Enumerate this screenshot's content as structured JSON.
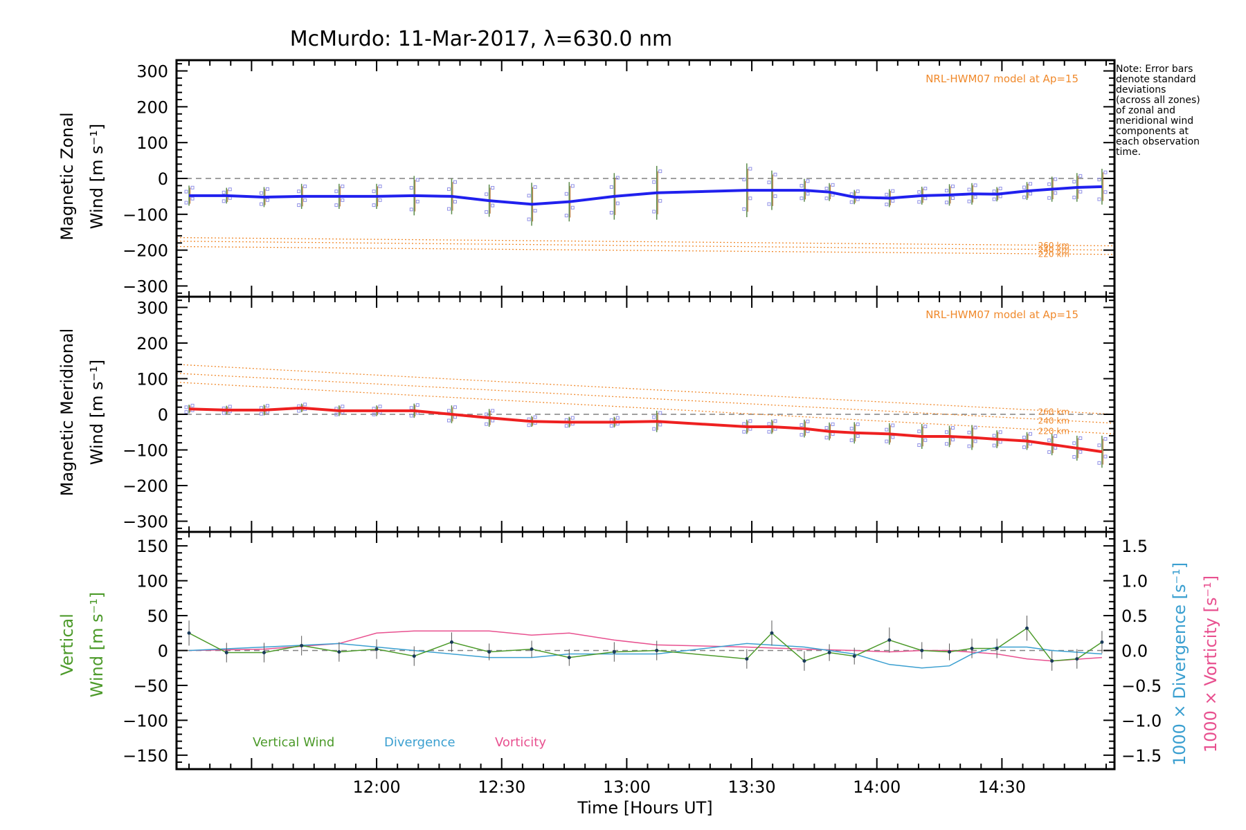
{
  "title": "McMurdo: 11-Mar-2017, λ=630.0 nm",
  "note_lines": [
    "Note: Error bars",
    "denote standard",
    "deviations",
    "(across all zones)",
    "of zonal and",
    "meridional wind",
    "components at",
    "each observation",
    "time."
  ],
  "colors": {
    "zonal": "#2020ee",
    "meridional": "#ee2020",
    "vertical": "#4c9a2a",
    "divergence": "#3a9fd0",
    "vorticity": "#e8508f",
    "model": "#f0892b",
    "zero": "#808080",
    "samples": "#8f8fe6",
    "errbar": "#555555"
  },
  "chart_data": [
    {
      "panel": "zonal",
      "type": "line",
      "ylabel_line1": "Magnetic Zonal",
      "ylabel_line2": "Wind [m s⁻¹]",
      "ylim": [
        -330,
        330
      ],
      "yticks": [
        -300,
        -200,
        -100,
        0,
        100,
        200,
        300
      ],
      "model_label": "NRL-HWM07 model at Ap=15",
      "model_series": [
        {
          "name": "260 km",
          "values": [
            -165,
            -188
          ]
        },
        {
          "name": "240 km",
          "values": [
            -175,
            -200
          ]
        },
        {
          "name": "220 km",
          "values": [
            -190,
            -212
          ]
        }
      ],
      "x": [
        11.25,
        11.4,
        11.55,
        11.7,
        11.85,
        12.0,
        12.15,
        12.3,
        12.45,
        12.62,
        12.77,
        12.95,
        13.12,
        13.48,
        13.58,
        13.71,
        13.81,
        13.91,
        14.05,
        14.18,
        14.29,
        14.38,
        14.48,
        14.6,
        14.7,
        14.8,
        14.9
      ],
      "values": [
        -48,
        -48,
        -52,
        -50,
        -50,
        -50,
        -48,
        -50,
        -62,
        -72,
        -65,
        -50,
        -40,
        -33,
        -33,
        -33,
        -38,
        -52,
        -55,
        -48,
        -46,
        -43,
        -44,
        -35,
        -30,
        -25,
        -23
      ],
      "errors": [
        28,
        22,
        28,
        35,
        35,
        35,
        55,
        50,
        45,
        60,
        55,
        65,
        75,
        75,
        55,
        32,
        25,
        20,
        25,
        25,
        30,
        30,
        20,
        25,
        35,
        40,
        50
      ],
      "points": [
        {
          "x": 11.25,
          "y": -48
        },
        {
          "x": 11.4,
          "y": -48
        },
        {
          "x": 11.55,
          "y": -52
        },
        {
          "x": 11.7,
          "y": -50
        },
        {
          "x": 11.85,
          "y": -50
        },
        {
          "x": 12.0,
          "y": -50
        },
        {
          "x": 12.15,
          "y": -48
        },
        {
          "x": 12.3,
          "y": -50
        },
        {
          "x": 12.45,
          "y": -62
        },
        {
          "x": 12.62,
          "y": -72
        },
        {
          "x": 12.77,
          "y": -65
        },
        {
          "x": 12.95,
          "y": -50
        },
        {
          "x": 13.12,
          "y": -40
        },
        {
          "x": 13.48,
          "y": -33
        },
        {
          "x": 13.58,
          "y": -33
        },
        {
          "x": 13.71,
          "y": -33
        },
        {
          "x": 13.81,
          "y": -38
        },
        {
          "x": 13.91,
          "y": -52
        },
        {
          "x": 14.05,
          "y": -55
        },
        {
          "x": 14.18,
          "y": -48
        },
        {
          "x": 14.29,
          "y": -46
        },
        {
          "x": 14.38,
          "y": -43
        },
        {
          "x": 14.48,
          "y": -44
        },
        {
          "x": 14.6,
          "y": -35
        },
        {
          "x": 14.7,
          "y": -30
        },
        {
          "x": 14.8,
          "y": -25
        },
        {
          "x": 14.9,
          "y": -23
        }
      ]
    },
    {
      "panel": "meridional",
      "type": "line",
      "ylabel_line1": "Magnetic Meridional",
      "ylabel_line2": "Wind [m s⁻¹]",
      "ylim": [
        -330,
        330
      ],
      "yticks": [
        -300,
        -200,
        -100,
        0,
        100,
        200,
        300
      ],
      "model_label": "NRL-HWM07 model at Ap=15",
      "model_series": [
        {
          "name": "260 km",
          "values": [
            140,
            0
          ]
        },
        {
          "name": "240 km",
          "values": [
            115,
            -25
          ]
        },
        {
          "name": "220 km",
          "values": [
            90,
            -55
          ]
        }
      ],
      "x": [
        11.25,
        11.4,
        11.55,
        11.7,
        11.85,
        12.0,
        12.15,
        12.3,
        12.45,
        12.62,
        12.77,
        12.95,
        13.12,
        13.48,
        13.58,
        13.71,
        13.81,
        13.91,
        14.05,
        14.18,
        14.29,
        14.38,
        14.48,
        14.6,
        14.7,
        14.8,
        14.9
      ],
      "values": [
        15,
        12,
        12,
        18,
        10,
        10,
        10,
        0,
        -10,
        -20,
        -22,
        -22,
        -20,
        -35,
        -35,
        -40,
        -48,
        -52,
        -55,
        -62,
        -62,
        -65,
        -70,
        -75,
        -85,
        -95,
        -105
      ],
      "errors": [
        12,
        12,
        15,
        12,
        15,
        15,
        20,
        25,
        25,
        15,
        15,
        15,
        30,
        20,
        20,
        25,
        25,
        30,
        30,
        35,
        30,
        35,
        25,
        25,
        30,
        35,
        45
      ],
      "points": [
        {
          "x": 11.25,
          "y": 15
        },
        {
          "x": 11.4,
          "y": 12
        },
        {
          "x": 11.55,
          "y": 12
        },
        {
          "x": 11.7,
          "y": 18
        },
        {
          "x": 11.85,
          "y": 10
        },
        {
          "x": 12.0,
          "y": 10
        },
        {
          "x": 12.15,
          "y": 10
        },
        {
          "x": 12.3,
          "y": 0
        },
        {
          "x": 12.45,
          "y": -10
        },
        {
          "x": 12.62,
          "y": -20
        },
        {
          "x": 12.77,
          "y": -22
        },
        {
          "x": 12.95,
          "y": -22
        },
        {
          "x": 13.12,
          "y": -20
        },
        {
          "x": 13.48,
          "y": -35
        },
        {
          "x": 13.58,
          "y": -35
        },
        {
          "x": 13.71,
          "y": -40
        },
        {
          "x": 13.81,
          "y": -48
        },
        {
          "x": 13.91,
          "y": -52
        },
        {
          "x": 14.05,
          "y": -55
        },
        {
          "x": 14.18,
          "y": -62
        },
        {
          "x": 14.29,
          "y": -62
        },
        {
          "x": 14.38,
          "y": -65
        },
        {
          "x": 14.48,
          "y": -70
        },
        {
          "x": 14.6,
          "y": -75
        },
        {
          "x": 14.7,
          "y": -85
        },
        {
          "x": 14.8,
          "y": -95
        },
        {
          "x": 14.9,
          "y": -105
        }
      ]
    },
    {
      "panel": "vertical",
      "type": "line",
      "ylabel_line1": "Vertical",
      "ylabel_line2": "Wind [m s⁻¹]",
      "ylim": [
        -170,
        170
      ],
      "yticks": [
        -150,
        -100,
        -50,
        0,
        50,
        100,
        150
      ],
      "ylabel_right_divergence": "1000 × Divergence [s⁻¹]",
      "ylabel_right_vorticity": "1000 × Vorticity [s⁻¹]",
      "y2lim": [
        -1.7,
        1.7
      ],
      "y2ticks": [
        -1.5,
        -1.0,
        -0.5,
        0.0,
        0.5,
        1.0,
        1.5
      ],
      "legend": [
        "Vertical Wind",
        "Divergence",
        "Vorticity"
      ],
      "x": [
        11.25,
        11.4,
        11.55,
        11.7,
        11.85,
        12.0,
        12.15,
        12.3,
        12.45,
        12.62,
        12.77,
        12.95,
        13.12,
        13.48,
        13.58,
        13.71,
        13.81,
        13.91,
        14.05,
        14.18,
        14.29,
        14.38,
        14.48,
        14.6,
        14.7,
        14.8,
        14.9
      ],
      "values": [
        25,
        -3,
        -3,
        7,
        -2,
        2,
        -8,
        12,
        -2,
        2,
        -10,
        -2,
        0,
        -12,
        25,
        -15,
        -3,
        -8,
        15,
        0,
        -2,
        3,
        3,
        32,
        -15,
        -12,
        12
      ],
      "errors": [
        18,
        14,
        14,
        14,
        14,
        14,
        14,
        14,
        12,
        12,
        12,
        14,
        14,
        14,
        18,
        14,
        12,
        12,
        18,
        12,
        12,
        14,
        14,
        18,
        14,
        14,
        16
      ],
      "divergence": [
        0.0,
        0.05,
        0.1,
        0.0,
        -0.1,
        -0.1,
        -0.05,
        -0.05,
        -0.05,
        0.1,
        0.05,
        -0.05,
        -0.2,
        -0.25,
        -0.22,
        -0.05,
        0.05,
        0.05,
        0.0,
        -0.05
      ],
      "divergence_x": [
        11.25,
        11.55,
        11.85,
        12.15,
        12.45,
        12.62,
        12.77,
        12.95,
        13.12,
        13.48,
        13.71,
        13.91,
        14.05,
        14.18,
        14.29,
        14.38,
        14.48,
        14.6,
        14.7,
        14.9
      ],
      "vorticity": [
        0.0,
        0.02,
        0.1,
        0.25,
        0.28,
        0.28,
        0.22,
        0.25,
        0.15,
        0.08,
        0.05,
        0.02,
        0.0,
        -0.02,
        0.0,
        0.0,
        -0.05,
        -0.12,
        -0.15,
        -0.1
      ],
      "vorticity_x": [
        11.25,
        11.55,
        11.85,
        12.0,
        12.15,
        12.45,
        12.62,
        12.77,
        12.95,
        13.12,
        13.48,
        13.71,
        13.91,
        14.05,
        14.18,
        14.29,
        14.48,
        14.6,
        14.7,
        14.9
      ]
    }
  ],
  "xaxis": {
    "label": "Time [Hours UT]",
    "xlim": [
      11.2,
      14.95
    ],
    "ticks": [
      12.0,
      12.5,
      13.0,
      13.5,
      14.0,
      14.5
    ],
    "tick_labels": [
      "12:00",
      "12:30",
      "13:00",
      "13:30",
      "14:00",
      "14:30"
    ]
  }
}
